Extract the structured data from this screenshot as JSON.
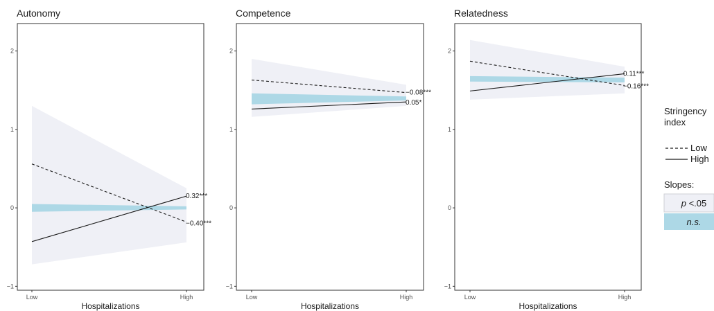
{
  "chart_data": [
    {
      "type": "line",
      "title": "Autonomy",
      "xlabel": "Hospitalizations",
      "ylabel": "",
      "x_categories": [
        "Low",
        "High"
      ],
      "yticks": [
        "−1",
        "0",
        "1",
        "2"
      ],
      "ylim": [
        -1.05,
        2.35
      ],
      "series": [
        {
          "name": "Low",
          "linetype": "dashed",
          "values": [
            0.56,
            -0.18
          ],
          "band": [
            [
              0.56,
              0.56
            ],
            [
              -0.18,
              -0.18
            ]
          ]
        },
        {
          "name": "High",
          "linetype": "solid",
          "values": [
            -0.43,
            0.15
          ],
          "band": [
            [
              -0.43,
              -0.43
            ],
            [
              0.15,
              0.15
            ]
          ]
        }
      ],
      "sig_region": {
        "x0": 0.0,
        "x1": 1.0,
        "lower": [
          -0.72,
          -0.44
        ],
        "upper": [
          1.3,
          0.25
        ],
        "crossing": 0.74
      },
      "ns_region": {
        "lower": [
          -0.05,
          -0.02
        ],
        "upper": [
          0.05,
          0.02
        ]
      },
      "slopes": [
        {
          "label": "0.32***",
          "y": 0.16
        },
        {
          "label": "−0.40***",
          "y": -0.19
        }
      ]
    },
    {
      "type": "line",
      "title": "Competence",
      "xlabel": "Hospitalizations",
      "ylabel": "",
      "x_categories": [
        "Low",
        "High"
      ],
      "yticks": [
        "−1",
        "0",
        "1",
        "2"
      ],
      "ylim": [
        -1.05,
        2.35
      ],
      "series": [
        {
          "name": "Low",
          "linetype": "dashed",
          "values": [
            1.63,
            1.47
          ]
        },
        {
          "name": "High",
          "linetype": "solid",
          "values": [
            1.26,
            1.35
          ]
        }
      ],
      "sig_region": {
        "lower": [
          1.16,
          1.3
        ],
        "upper": [
          1.9,
          1.57
        ]
      },
      "ns_region": {
        "lower": [
          1.32,
          1.37
        ],
        "upper": [
          1.46,
          1.42
        ]
      },
      "slopes": [
        {
          "label": "−0.08***",
          "y": 1.48
        },
        {
          "label": "0.05*",
          "y": 1.35
        }
      ]
    },
    {
      "type": "line",
      "title": "Relatedness",
      "xlabel": "Hospitalizations",
      "ylabel": "",
      "x_categories": [
        "Low",
        "High"
      ],
      "yticks": [
        "−1",
        "0",
        "1",
        "2"
      ],
      "ylim": [
        -1.05,
        2.35
      ],
      "series": [
        {
          "name": "Low",
          "linetype": "dashed",
          "values": [
            1.87,
            1.56
          ]
        },
        {
          "name": "High",
          "linetype": "solid",
          "values": [
            1.49,
            1.71
          ]
        }
      ],
      "sig_region": {
        "lower": [
          1.38,
          1.46
        ],
        "upper": [
          2.14,
          1.8
        ]
      },
      "ns_region": {
        "lower": [
          1.61,
          1.6
        ],
        "upper": [
          1.68,
          1.66
        ]
      },
      "slopes": [
        {
          "label": "0.11***",
          "y": 1.72
        },
        {
          "label": "−0.16***",
          "y": 1.56
        }
      ]
    }
  ],
  "legend": {
    "title_line1": "Stringency",
    "title_line2": "index",
    "items": [
      {
        "label": "Low",
        "linetype": "dashed"
      },
      {
        "label": "High",
        "linetype": "solid"
      }
    ],
    "slopes_title": "Slopes:",
    "keys": [
      {
        "label": "p <.05",
        "label_italic_part": "p",
        "label_rest": " <.05",
        "color": "#eff0f6"
      },
      {
        "label": "n.s.",
        "color": "#add8e6"
      }
    ]
  },
  "colors": {
    "sig_band": "#eff0f6",
    "ns_band": "#add8e6",
    "line": "#1a1a1a",
    "panel_border": "#333333"
  }
}
